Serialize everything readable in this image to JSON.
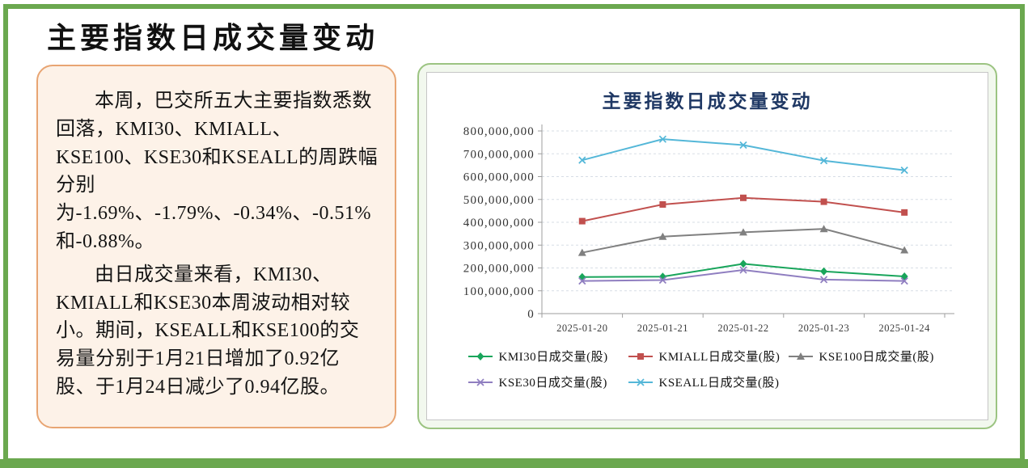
{
  "page": {
    "title": "主要指数日成交量变动",
    "accent_colors": {
      "page_border_green": "#6BA84F",
      "panel_border_green": "#9CC482",
      "note_background": "#FDF2E8",
      "note_border_orange": "#E8A573",
      "chart_title_navy": "#1F3864"
    }
  },
  "commentary": {
    "paragraphs": [
      "本周，巴交所五大主要指数悉数回落，KMI30、KMIALL、KSE100、KSE30和KSEALL的周跌幅分别为-1.69%、-1.79%、-0.34%、-0.51%和-0.88%。",
      "由日成交量来看，KMI30、KMIALL和KSE30本周波动相对较小。期间，KSEALL和KSE100的交易量分别于1月21日增加了0.92亿股、于1月24日减少了0.94亿股。"
    ]
  },
  "chart_data": {
    "type": "line",
    "title": "主要指数日成交量变动",
    "categories": [
      "2025-01-20",
      "2025-01-21",
      "2025-01-22",
      "2025-01-23",
      "2025-01-24"
    ],
    "series": [
      {
        "name": "KMI30日成交量(股)",
        "color": "#19A55B",
        "marker": "diamond",
        "values": [
          160000000,
          162000000,
          218000000,
          185000000,
          163000000
        ]
      },
      {
        "name": "KMIALL日成交量(股)",
        "color": "#C1504E",
        "marker": "square",
        "values": [
          405000000,
          478000000,
          507000000,
          490000000,
          443000000
        ]
      },
      {
        "name": "KSE100日成交量(股)",
        "color": "#808080",
        "marker": "triangle",
        "values": [
          267000000,
          337000000,
          356000000,
          371000000,
          278000000
        ]
      },
      {
        "name": "KSE30日成交量(股)",
        "color": "#8F7EC0",
        "marker": "x",
        "values": [
          143000000,
          147000000,
          191000000,
          149000000,
          143000000
        ]
      },
      {
        "name": "KSEALL日成交量(股)",
        "color": "#54B7D8",
        "marker": "x",
        "values": [
          672000000,
          764000000,
          738000000,
          670000000,
          628000000
        ]
      }
    ],
    "xlabel": "",
    "ylabel": "",
    "ylim": [
      0,
      800000000
    ],
    "ytick_step": 100000000,
    "ytick_labels": [
      "0",
      "100,000,000",
      "200,000,000",
      "300,000,000",
      "400,000,000",
      "500,000,000",
      "600,000,000",
      "700,000,000",
      "800,000,000"
    ],
    "grid": "horizontal-dashed",
    "legend_position": "bottom"
  }
}
